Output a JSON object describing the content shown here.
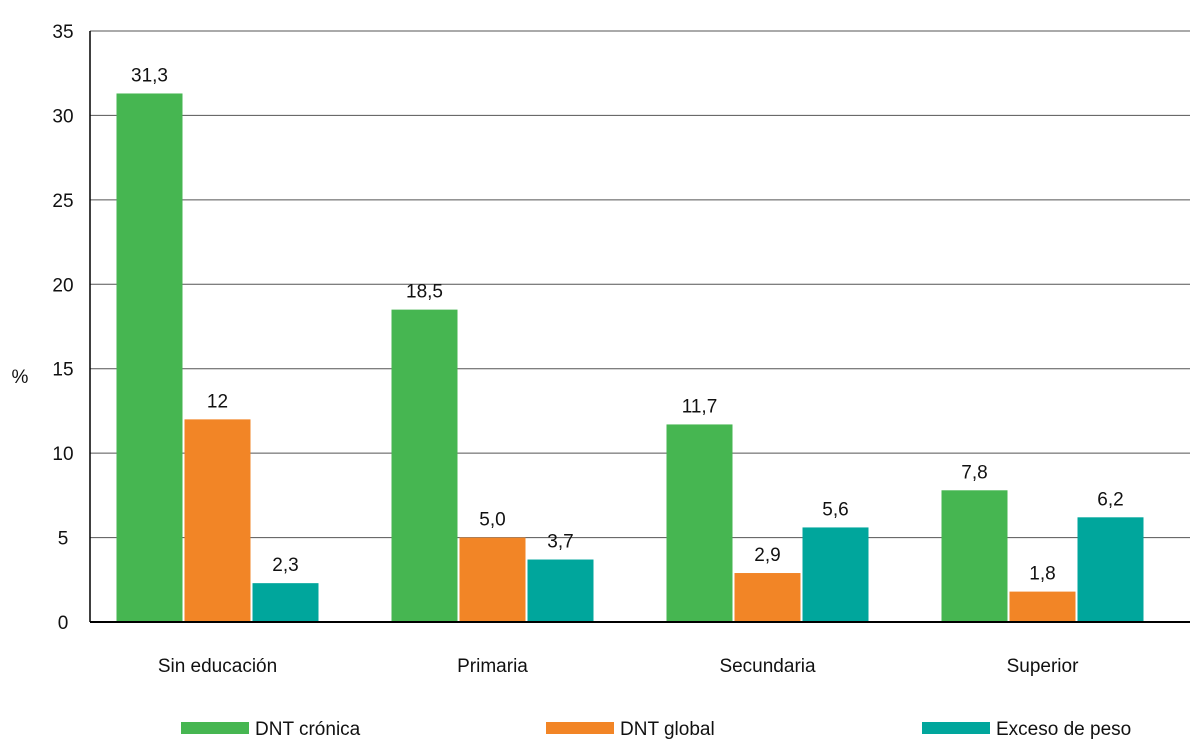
{
  "chart_data": {
    "type": "bar",
    "ylabel": "%",
    "ylim": [
      0,
      35
    ],
    "yticks": [
      0,
      5,
      10,
      15,
      20,
      25,
      30,
      35
    ],
    "grid": true,
    "legend_position": "bottom",
    "categories": [
      "Sin educación",
      "Primaria",
      "Secundaria",
      "Superior"
    ],
    "series": [
      {
        "name": "DNT crónica",
        "color": "#46b651",
        "values": [
          31.3,
          18.5,
          11.7,
          7.8
        ],
        "labels": [
          "31,3",
          "18,5",
          "11,7",
          "7,8"
        ]
      },
      {
        "name": "DNT global",
        "color": "#f28526",
        "values": [
          12,
          5.0,
          2.9,
          1.8
        ],
        "labels": [
          "12",
          "5,0",
          "2,9",
          "1,8"
        ]
      },
      {
        "name": "Exceso de peso",
        "color": "#00a69c",
        "values": [
          2.3,
          3.7,
          5.6,
          6.2
        ],
        "labels": [
          "2,3",
          "3,7",
          "5,6",
          "6,2"
        ]
      }
    ]
  }
}
